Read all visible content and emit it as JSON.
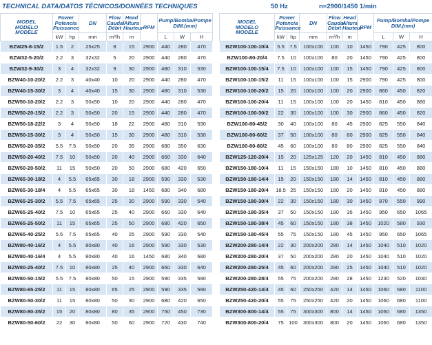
{
  "header": {
    "title": "TECHNICAL DATA/DATOS TÉCNICOS/DONNÉES TECHNIQUES",
    "frequency": "50 Hz",
    "speed": "n=2900/1450 1/min"
  },
  "columns": {
    "model": [
      "MODEL",
      "MODELO",
      "MODÈLE"
    ],
    "power": [
      "Power",
      "Potencia",
      "Puissance"
    ],
    "kw": "kW",
    "hp": "hp",
    "dn": "DN",
    "dn_unit": "mm",
    "flow": [
      "Flow",
      "Caudal",
      "Débit"
    ],
    "flow_unit": "m³/h",
    "head": [
      "Head",
      "Altura",
      "Hauteur"
    ],
    "head_unit": "m",
    "rpm": "RPM",
    "dim": [
      "Pump/Bomba/Pompe",
      "DIM.(mm)"
    ],
    "l": "L",
    "w": "W",
    "h": "H"
  },
  "tables": [
    {
      "rows": [
        [
          "BZW25-8-15/2",
          "1.5",
          "2",
          "25x25",
          "8",
          "15",
          "2900",
          "440",
          "280",
          "470"
        ],
        [
          "BZW32-5-20/2",
          "2.2",
          "3",
          "32x32",
          "5",
          "20",
          "2900",
          "440",
          "280",
          "470"
        ],
        [
          "BZW32-9-30/2",
          "3",
          "4",
          "32x32",
          "9",
          "30",
          "2900",
          "480",
          "310",
          "530"
        ],
        [
          "BZW40-10-20/2",
          "2.2",
          "3",
          "40x40",
          "10",
          "20",
          "2900",
          "440",
          "280",
          "470"
        ],
        [
          "BZW40-15-30/2",
          "3",
          "4",
          "40x40",
          "15",
          "30",
          "2900",
          "480",
          "310",
          "530"
        ],
        [
          "BZW50-10-20/2",
          "2.2",
          "3",
          "50x50",
          "10",
          "20",
          "2900",
          "440",
          "280",
          "470"
        ],
        [
          "BZW50-20-15/2",
          "2.2",
          "3",
          "50x50",
          "20",
          "15",
          "2900",
          "440",
          "280",
          "470"
        ],
        [
          "BZW50-18-22/2",
          "3",
          "4",
          "50x50",
          "18",
          "22",
          "2900",
          "480",
          "310",
          "530"
        ],
        [
          "BZW50-15-30/2",
          "3",
          "4",
          "50x50",
          "15",
          "30",
          "2900",
          "480",
          "310",
          "530"
        ],
        [
          "BZW50-20-35/2",
          "5.5",
          "7.5",
          "50x50",
          "20",
          "35",
          "2900",
          "680",
          "350",
          "630"
        ],
        [
          "BZW50-20-40/2",
          "7.5",
          "10",
          "50x50",
          "20",
          "40",
          "2900",
          "660",
          "330",
          "640"
        ],
        [
          "BZW50-20-50/2",
          "11",
          "15",
          "50x50",
          "20",
          "50",
          "2900",
          "680",
          "420",
          "650"
        ],
        [
          "BZW65-30-18/2",
          "4",
          "5.5",
          "65x65",
          "30",
          "18",
          "2900",
          "590",
          "330",
          "530"
        ],
        [
          "BZW65-30-18/4",
          "4",
          "5.5",
          "65x65",
          "30",
          "18",
          "1450",
          "680",
          "340",
          "680"
        ],
        [
          "BZW65-25-30/2",
          "5.5",
          "7.5",
          "65x65",
          "25",
          "30",
          "2900",
          "590",
          "330",
          "540"
        ],
        [
          "BZW65-25-40/2",
          "7.5",
          "10",
          "65x65",
          "25",
          "40",
          "2900",
          "660",
          "330",
          "640"
        ],
        [
          "BZW65-25-50/2",
          "11",
          "15",
          "65x65",
          "25",
          "50",
          "2900",
          "680",
          "420",
          "650"
        ],
        [
          "BZW65-40-25/2",
          "5.5",
          "7.5",
          "65x65",
          "40",
          "25",
          "2900",
          "590",
          "330",
          "540"
        ],
        [
          "BZW80-40-16/2",
          "4",
          "5.5",
          "80x80",
          "40",
          "16",
          "2900",
          "590",
          "330",
          "530"
        ],
        [
          "BZW80-40-16/4",
          "4",
          "5.5",
          "80x80",
          "40",
          "16",
          "1450",
          "680",
          "340",
          "680"
        ],
        [
          "BZW80-25-40/2",
          "7.5",
          "10",
          "80x80",
          "25",
          "40",
          "2900",
          "660",
          "330",
          "640"
        ],
        [
          "BZW80-50-15/2",
          "5.5",
          "7.5",
          "80x80",
          "50",
          "15",
          "2900",
          "590",
          "335",
          "590"
        ],
        [
          "BZW80-65-25/2",
          "11",
          "15",
          "80x80",
          "65",
          "25",
          "2900",
          "590",
          "335",
          "590"
        ],
        [
          "BZW80-50-30/2",
          "11",
          "15",
          "80x80",
          "50",
          "30",
          "2900",
          "680",
          "420",
          "650"
        ],
        [
          "BZW80-80-35/2",
          "15",
          "20",
          "80x80",
          "80",
          "35",
          "2900",
          "750",
          "450",
          "730"
        ],
        [
          "BZW80-50-60/2",
          "22",
          "30",
          "80x80",
          "50",
          "60",
          "2900",
          "720",
          "430",
          "740"
        ]
      ]
    },
    {
      "rows": [
        [
          "BZW100-100-10/4",
          "5.5",
          "7.5",
          "100x100",
          "100",
          "10",
          "1450",
          "790",
          "425",
          "800"
        ],
        [
          "BZW100-80-20/4",
          "7.5",
          "10",
          "100x100",
          "80",
          "20",
          "1450",
          "790",
          "425",
          "800"
        ],
        [
          "BZW100-100-15/4",
          "7.5",
          "10",
          "100x100",
          "100",
          "15",
          "1450",
          "790",
          "425",
          "800"
        ],
        [
          "BZW100-100-15/2",
          "11",
          "15",
          "100x100",
          "100",
          "15",
          "2900",
          "790",
          "425",
          "800"
        ],
        [
          "BZW100-100-20/2",
          "15",
          "20",
          "100x100",
          "100",
          "20",
          "2900",
          "860",
          "450",
          "820"
        ],
        [
          "BZW100-100-20/4",
          "11",
          "15",
          "100x100",
          "100",
          "20",
          "1450",
          "810",
          "450",
          "880"
        ],
        [
          "BZW100-100-30/2",
          "22",
          "30",
          "100x100",
          "100",
          "30",
          "2900",
          "860",
          "450",
          "820"
        ],
        [
          "BZW100-80-45/2",
          "30",
          "40",
          "100x100",
          "80",
          "45",
          "2900",
          "825",
          "550",
          "840"
        ],
        [
          "BZW100-80-60/2",
          "37",
          "50",
          "100x100",
          "80",
          "60",
          "2900",
          "825",
          "550",
          "840"
        ],
        [
          "BZW100-80-80/2",
          "45",
          "60",
          "100x100",
          "80",
          "80",
          "2900",
          "825",
          "550",
          "840"
        ],
        [
          "BZW125-120-20/4",
          "15",
          "20",
          "125x125",
          "120",
          "20",
          "1450",
          "810",
          "450",
          "880"
        ],
        [
          "BZW150-180-10/4",
          "11",
          "15",
          "150x150",
          "180",
          "10",
          "1450",
          "810",
          "450",
          "880"
        ],
        [
          "BZW150-180-14/4",
          "15",
          "20",
          "150x150",
          "180",
          "14",
          "1450",
          "810",
          "450",
          "880"
        ],
        [
          "BZW150-180-20/4",
          "18.5",
          "25",
          "150x150",
          "180",
          "20",
          "1450",
          "810",
          "450",
          "880"
        ],
        [
          "BZW150-180-30/4",
          "22",
          "30",
          "150x150",
          "180",
          "30",
          "1450",
          "870",
          "550",
          "990"
        ],
        [
          "BZW150-180-35/4",
          "37",
          "50",
          "150x150",
          "180",
          "35",
          "1450",
          "950",
          "650",
          "1065"
        ],
        [
          "BZW150-180-38/4",
          "45",
          "60",
          "150x150",
          "180",
          "38",
          "1450",
          "1020",
          "580",
          "930"
        ],
        [
          "BZW150-180-45/4",
          "55",
          "75",
          "150x150",
          "180",
          "45",
          "1450",
          "950",
          "650",
          "1065"
        ],
        [
          "BZW200-280-14/4",
          "22",
          "30",
          "200x200",
          "280",
          "14",
          "1450",
          "1040",
          "510",
          "1020"
        ],
        [
          "BZW200-280-20/4",
          "37",
          "50",
          "200x200",
          "280",
          "20",
          "1450",
          "1040",
          "510",
          "1020"
        ],
        [
          "BZW200-280-25/4",
          "45",
          "60",
          "200x200",
          "280",
          "25",
          "1450",
          "1040",
          "510",
          "1020"
        ],
        [
          "BZW200-280-28/4",
          "55",
          "75",
          "200x200",
          "280",
          "28",
          "1450",
          "1230",
          "520",
          "1030"
        ],
        [
          "BZW250-420-14/4",
          "45",
          "60",
          "250x250",
          "420",
          "14",
          "1450",
          "1060",
          "680",
          "1100"
        ],
        [
          "BZW250-420-20/4",
          "55",
          "75",
          "250x250",
          "420",
          "20",
          "1450",
          "1060",
          "680",
          "1100"
        ],
        [
          "BZW300-800-14/4",
          "55",
          "75",
          "300x300",
          "800",
          "14",
          "1450",
          "1060",
          "680",
          "1350"
        ],
        [
          "BZW300-800-20/4",
          "75",
          "100",
          "300x300",
          "800",
          "20",
          "1450",
          "1060",
          "680",
          "1350"
        ]
      ]
    }
  ]
}
